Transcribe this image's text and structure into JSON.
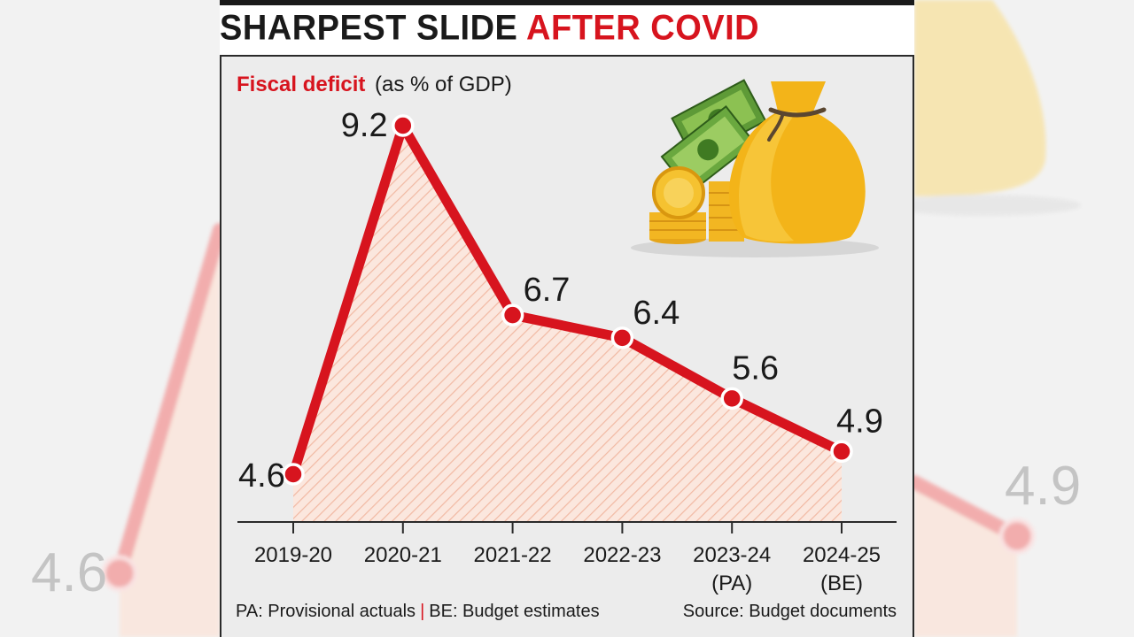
{
  "header": {
    "title_black": "SHARPEST SLIDE",
    "title_red": "AFTER COVID"
  },
  "chart_data": {
    "type": "line",
    "title": "Fiscal deficit",
    "subtitle": "(as % of GDP)",
    "categories": [
      "2019-20",
      "2020-21",
      "2021-22",
      "2022-23",
      "2023-24",
      "2024-25"
    ],
    "category_sublabels": [
      "",
      "",
      "",
      "",
      "(PA)",
      "(BE)"
    ],
    "series": [
      {
        "values": [
          4.6,
          9.2,
          6.7,
          6.4,
          5.6,
          4.9
        ],
        "data_labels": [
          "4.6",
          "9.2",
          "6.7",
          "6.4",
          "5.6",
          "4.9"
        ]
      }
    ],
    "ylim": [
      2.5,
      10
    ],
    "grid": false,
    "area_fill": true,
    "colors": {
      "line": "#d7141e",
      "fill_hatch": "#f4c4b0",
      "panel_bg": "#ececec"
    }
  },
  "footer": {
    "note_pa": "PA: Provisional actuals",
    "separator": "|",
    "note_be": "BE: Budget estimates",
    "source": "Source: Budget documents"
  },
  "illustration": {
    "icon": "money-bag-coins-cash-icon"
  }
}
